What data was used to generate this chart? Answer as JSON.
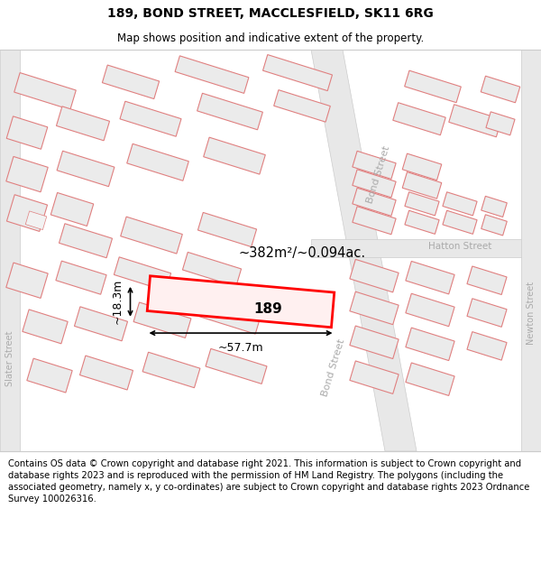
{
  "title": "189, BOND STREET, MACCLESFIELD, SK11 6RG",
  "subtitle": "Map shows position and indicative extent of the property.",
  "footer": "Contains OS data © Crown copyright and database right 2021. This information is subject to Crown copyright and database rights 2023 and is reproduced with the permission of HM Land Registry. The polygons (including the associated geometry, namely x, y co-ordinates) are subject to Crown copyright and database rights 2023 Ordnance Survey 100026316.",
  "area_label": "~382m²/~0.094ac.",
  "width_label": "~57.7m",
  "height_label": "~18.3m",
  "property_number": "189",
  "map_bg": "#f7f7f7",
  "building_stroke": "#e08080",
  "building_fill": "#ebebeb",
  "road_fill": "#ffffff",
  "road_stroke": "#c8c8c8",
  "highlight_color": "#ff0000",
  "street_label_color": "#aaaaaa",
  "title_fontsize": 10,
  "subtitle_fontsize": 8.5,
  "footer_fontsize": 7.2,
  "ang": -17
}
